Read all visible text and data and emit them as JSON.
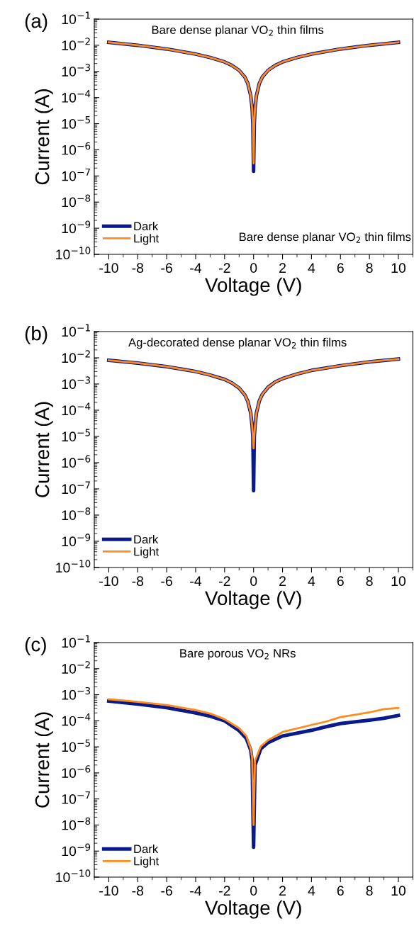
{
  "chart_data": [
    {
      "type": "line",
      "title": "(a)",
      "xlabel": "Voltage (V)",
      "ylabel": "Current (A)",
      "log": "y",
      "legend": "bottom left",
      "grid": false,
      "annotations": [
        "Bare dense planar VO$_{2}$ thin films",
        "Bare dense planar VO$_{2}$ thin films"
      ],
      "xlim": [
        -11,
        11
      ],
      "xticks": [
        -10,
        -8,
        -6,
        -4,
        -2,
        0,
        2,
        4,
        6,
        8,
        10
      ],
      "ylim": [
        1e-10,
        0.1
      ],
      "yticks": [
        {
          "value": 1e-10,
          "label": "10$^{−10}$"
        },
        {
          "value": 1e-09,
          "label": "10$^{−9}$"
        },
        {
          "value": 1e-08,
          "label": "10$^{−8}$"
        },
        {
          "value": 1e-07,
          "label": "10$^{−7}$"
        },
        {
          "value": 1e-06,
          "label": "10$^{−6}$"
        },
        {
          "value": 1e-05,
          "label": "10$^{−5}$"
        },
        {
          "value": 0.0001,
          "label": "10$^{−4}$"
        },
        {
          "value": 0.001,
          "label": "10$^{−3}$"
        },
        {
          "value": 0.01,
          "label": "10$^{−2}$"
        },
        {
          "value": 0.1,
          "label": "10$^{−1}$"
        }
      ],
      "x": [
        -10,
        -8,
        -6,
        -4,
        -3,
        -2,
        -1.5,
        -1,
        -0.6,
        -0.4,
        -0.2,
        -0.1,
        -0.05,
        0,
        0.05,
        0.1,
        0.2,
        0.4,
        0.6,
        1,
        1.5,
        2,
        3,
        4,
        6,
        8,
        10
      ],
      "series": [
        {
          "name": "Dark",
          "color": "#0a1a8c",
          "values": [
            0.013,
            0.01,
            0.0072,
            0.0046,
            0.0034,
            0.0023,
            0.0017,
            0.0011,
            0.0006,
            0.00035,
            0.00012,
            4e-05,
            1e-05,
            1.5e-07,
            1e-05,
            4e-05,
            0.00012,
            0.00035,
            0.0006,
            0.0011,
            0.0017,
            0.0023,
            0.0034,
            0.0046,
            0.0072,
            0.01,
            0.013
          ]
        },
        {
          "name": "Light",
          "color": "#ff8c1a",
          "values": [
            0.013,
            0.01,
            0.0072,
            0.0046,
            0.0034,
            0.0023,
            0.0017,
            0.0011,
            0.0006,
            0.00035,
            0.00012,
            4e-05,
            1e-05,
            3e-07,
            1e-05,
            4e-05,
            0.00012,
            0.00035,
            0.0006,
            0.0011,
            0.0017,
            0.0023,
            0.0034,
            0.0046,
            0.0072,
            0.01,
            0.013
          ]
        }
      ]
    },
    {
      "type": "line",
      "title": "(b)",
      "xlabel": "Voltage (V)",
      "ylabel": "Current (A)",
      "log": "y",
      "legend": "bottom left",
      "grid": false,
      "annotations": [
        "Ag-decorated dense planar VO$_{2}$ thin films"
      ],
      "xlim": [
        -11,
        11
      ],
      "xticks": [
        -10,
        -8,
        -6,
        -4,
        -2,
        0,
        2,
        4,
        6,
        8,
        10
      ],
      "ylim": [
        1e-10,
        0.1
      ],
      "yticks": [
        {
          "value": 1e-10,
          "label": "10$^{−10}$"
        },
        {
          "value": 1e-09,
          "label": "10$^{−9}$"
        },
        {
          "value": 1e-08,
          "label": "10$^{−8}$"
        },
        {
          "value": 1e-07,
          "label": "10$^{−7}$"
        },
        {
          "value": 1e-06,
          "label": "10$^{−6}$"
        },
        {
          "value": 1e-05,
          "label": "10$^{−5}$"
        },
        {
          "value": 0.0001,
          "label": "10$^{−4}$"
        },
        {
          "value": 0.001,
          "label": "10$^{−3}$"
        },
        {
          "value": 0.01,
          "label": "10$^{−2}$"
        },
        {
          "value": 0.1,
          "label": "10$^{−1}$"
        }
      ],
      "x": [
        -10,
        -8,
        -6,
        -4,
        -3,
        -2,
        -1.5,
        -1,
        -0.6,
        -0.4,
        -0.2,
        -0.1,
        -0.05,
        0,
        0.05,
        0.1,
        0.2,
        0.4,
        0.6,
        1,
        1.5,
        2,
        3,
        4,
        6,
        8,
        10
      ],
      "series": [
        {
          "name": "Dark",
          "color": "#0a1a8c",
          "values": [
            0.008,
            0.0063,
            0.0046,
            0.003,
            0.0022,
            0.0015,
            0.0011,
            0.0007,
            0.00038,
            0.00022,
            8e-05,
            2.5e-05,
            1e-05,
            8.5e-08,
            1e-05,
            2.5e-05,
            8e-05,
            0.00023,
            0.0004,
            0.00075,
            0.0012,
            0.0016,
            0.0024,
            0.0033,
            0.005,
            0.007,
            0.009
          ]
        },
        {
          "name": "Light",
          "color": "#ff8c1a",
          "values": [
            0.008,
            0.0063,
            0.0046,
            0.003,
            0.0022,
            0.0015,
            0.0011,
            0.0007,
            0.00038,
            0.00022,
            8e-05,
            2.5e-05,
            1e-05,
            3.5e-06,
            1e-05,
            2.5e-05,
            8e-05,
            0.00023,
            0.0004,
            0.00075,
            0.0012,
            0.0016,
            0.0024,
            0.0033,
            0.005,
            0.007,
            0.009
          ]
        }
      ]
    },
    {
      "type": "line",
      "title": "(c)",
      "xlabel": "Voltage (V)",
      "ylabel": "Current (A)",
      "log": "y",
      "legend": "bottom left",
      "grid": false,
      "annotations": [
        "Bare porous VO$_{2}$ NRs"
      ],
      "xlim": [
        -11,
        11
      ],
      "xticks": [
        -10,
        -8,
        -6,
        -4,
        -2,
        0,
        2,
        4,
        6,
        8,
        10
      ],
      "ylim": [
        1e-10,
        0.1
      ],
      "yticks": [
        {
          "value": 1e-10,
          "label": "10$^{−10}$"
        },
        {
          "value": 1e-09,
          "label": "10$^{−9}$"
        },
        {
          "value": 1e-08,
          "label": "10$^{−8}$"
        },
        {
          "value": 1e-07,
          "label": "10$^{−7}$"
        },
        {
          "value": 1e-06,
          "label": "10$^{−6}$"
        },
        {
          "value": 1e-05,
          "label": "10$^{−5}$"
        },
        {
          "value": 0.0001,
          "label": "10$^{−4}$"
        },
        {
          "value": 0.001,
          "label": "10$^{−3}$"
        },
        {
          "value": 0.01,
          "label": "10$^{−2}$"
        },
        {
          "value": 0.1,
          "label": "10$^{−1}$"
        }
      ],
      "x": [
        -10,
        -8,
        -6,
        -4,
        -3,
        -2,
        -1,
        -0.5,
        -0.2,
        -0.1,
        0,
        0.1,
        0.2,
        0.5,
        1,
        2,
        4,
        5,
        6,
        8,
        9,
        10
      ],
      "series": [
        {
          "name": "Dark",
          "color": "#0a1a8c",
          "values": [
            0.00057,
            0.00044,
            0.00032,
            0.0002,
            0.00015,
            0.0001,
            4.2e-05,
            2.1e-05,
            7.5e-06,
            3e-06,
            1.4e-09,
            2e-06,
            2.8e-06,
            8.5e-06,
            1.45e-05,
            2.6e-05,
            4.3e-05,
            5.9e-05,
            7.8e-05,
            0.000105,
            0.000125,
            0.00016
          ]
        },
        {
          "name": "Light",
          "color": "#ff8c1a",
          "values": [
            0.00067,
            0.00053,
            0.0004,
            0.00026,
            0.00019,
            0.000115,
            5.2e-05,
            2.6e-05,
            8.5e-06,
            4e-06,
            1e-08,
            3e-06,
            4e-06,
            1.05e-05,
            1.8e-05,
            3.7e-05,
            6.9e-05,
            9.3e-05,
            0.000138,
            0.00021,
            0.00028,
            0.00031
          ]
        }
      ]
    }
  ]
}
